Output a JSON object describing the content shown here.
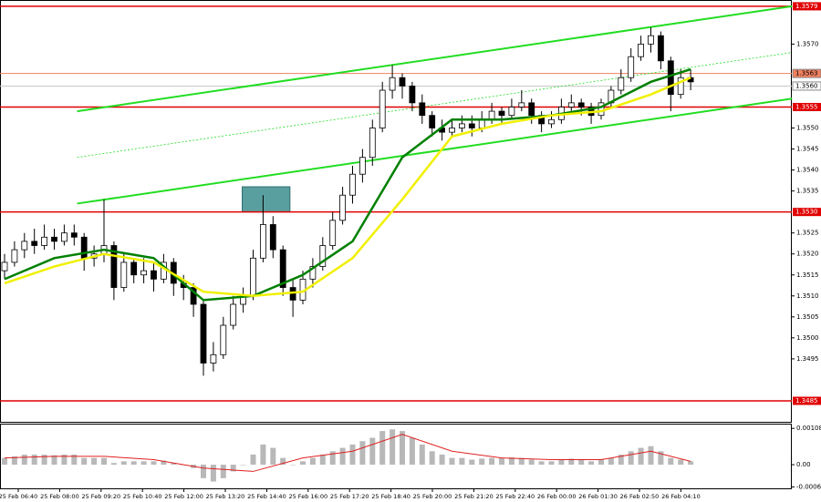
{
  "chart_data": {
    "type": "candlestick",
    "ylim": [
      1.348,
      1.35805
    ],
    "yticks": [
      {
        "value": 1.357,
        "label": "1.3570"
      },
      {
        "value": 1.355,
        "label": "1.3550"
      },
      {
        "value": 1.3545,
        "label": "1.3545"
      },
      {
        "value": 1.354,
        "label": "1.3540"
      },
      {
        "value": 1.3535,
        "label": "1.3535"
      },
      {
        "value": 1.3525,
        "label": "1.3525"
      },
      {
        "value": 1.352,
        "label": "1.3520"
      },
      {
        "value": 1.3515,
        "label": "1.3515"
      },
      {
        "value": 1.351,
        "label": "1.3510"
      },
      {
        "value": 1.3505,
        "label": "1.3505"
      },
      {
        "value": 1.35,
        "label": "1.3500"
      },
      {
        "value": 1.3495,
        "label": "1.3495"
      }
    ],
    "levels": [
      {
        "value": 1.3579,
        "label": "1.3579",
        "color": "#e00000"
      },
      {
        "value": 1.3563,
        "label": "1.3563",
        "color": "#f08060"
      },
      {
        "value": 1.356,
        "label": "1.3560",
        "color": "#c8c8c8"
      },
      {
        "value": 1.3555,
        "label": "1.3555",
        "color": "#e00000"
      },
      {
        "value": 1.353,
        "label": "1.3530",
        "color": "#e00000"
      },
      {
        "value": 1.3485,
        "label": "1.3485",
        "color": "#e00000"
      }
    ],
    "x_labels": [
      "25 Feb 06:40",
      "25 Feb 08:00",
      "25 Feb 09:20",
      "25 Feb 10:40",
      "25 Feb 12:00",
      "25 Feb 13:20",
      "25 Feb 14:40",
      "25 Feb 16:00",
      "25 Feb 17:20",
      "25 Feb 18:40",
      "25 Feb 20:00",
      "25 Feb 21:20",
      "25 Feb 22:40",
      "26 Feb 00:00",
      "26 Feb 01:30",
      "26 Feb 02:50",
      "26 Feb 04:10"
    ],
    "ohlc": [
      [
        1.3516,
        1.352,
        1.3514,
        1.3518
      ],
      [
        1.3518,
        1.3523,
        1.3517,
        1.3521
      ],
      [
        1.3521,
        1.3525,
        1.3519,
        1.3523
      ],
      [
        1.3523,
        1.3526,
        1.352,
        1.3522
      ],
      [
        1.3522,
        1.3527,
        1.3521,
        1.3524
      ],
      [
        1.3524,
        1.3526,
        1.3521,
        1.3523
      ],
      [
        1.3523,
        1.3527,
        1.3522,
        1.3525
      ],
      [
        1.3525,
        1.3527,
        1.3522,
        1.3524
      ],
      [
        1.3524,
        1.3525,
        1.3516,
        1.3519
      ],
      [
        1.3519,
        1.3522,
        1.3517,
        1.352
      ],
      [
        1.352,
        1.3533,
        1.3518,
        1.3522
      ],
      [
        1.3522,
        1.3523,
        1.3509,
        1.3512
      ],
      [
        1.3512,
        1.352,
        1.3511,
        1.3518
      ],
      [
        1.3518,
        1.3519,
        1.3513,
        1.3515
      ],
      [
        1.3515,
        1.3519,
        1.3513,
        1.3516
      ],
      [
        1.3516,
        1.3518,
        1.3511,
        1.3514
      ],
      [
        1.3514,
        1.352,
        1.3513,
        1.3518
      ],
      [
        1.3518,
        1.3519,
        1.351,
        1.3513
      ],
      [
        1.3513,
        1.3515,
        1.3509,
        1.3512
      ],
      [
        1.3512,
        1.3513,
        1.3505,
        1.3508
      ],
      [
        1.3508,
        1.3509,
        1.3491,
        1.3494
      ],
      [
        1.3494,
        1.3499,
        1.3492,
        1.3496
      ],
      [
        1.3496,
        1.3505,
        1.3495,
        1.3503
      ],
      [
        1.3503,
        1.351,
        1.3502,
        1.3508
      ],
      [
        1.3508,
        1.3512,
        1.3506,
        1.351
      ],
      [
        1.351,
        1.3521,
        1.3509,
        1.3519
      ],
      [
        1.3519,
        1.3534,
        1.3518,
        1.3527
      ],
      [
        1.3527,
        1.3529,
        1.3519,
        1.3521
      ],
      [
        1.3521,
        1.3522,
        1.351,
        1.3512
      ],
      [
        1.3512,
        1.3514,
        1.3505,
        1.3509
      ],
      [
        1.3509,
        1.3516,
        1.3508,
        1.3514
      ],
      [
        1.3514,
        1.3519,
        1.3512,
        1.3517
      ],
      [
        1.3517,
        1.3524,
        1.3516,
        1.3522
      ],
      [
        1.3522,
        1.353,
        1.3521,
        1.3528
      ],
      [
        1.3528,
        1.3536,
        1.3527,
        1.3534
      ],
      [
        1.3534,
        1.3541,
        1.3532,
        1.3539
      ],
      [
        1.3539,
        1.3545,
        1.3537,
        1.3543
      ],
      [
        1.3543,
        1.3552,
        1.3541,
        1.355
      ],
      [
        1.355,
        1.3561,
        1.3549,
        1.3559
      ],
      [
        1.3559,
        1.3565,
        1.3557,
        1.3562
      ],
      [
        1.3562,
        1.3563,
        1.3557,
        1.356
      ],
      [
        1.356,
        1.3561,
        1.3554,
        1.3556
      ],
      [
        1.3556,
        1.3558,
        1.3551,
        1.3553
      ],
      [
        1.3553,
        1.3554,
        1.3548,
        1.355
      ],
      [
        1.355,
        1.3552,
        1.3547,
        1.3549
      ],
      [
        1.3549,
        1.3552,
        1.3548,
        1.355
      ],
      [
        1.355,
        1.3553,
        1.3549,
        1.3551
      ],
      [
        1.3551,
        1.3553,
        1.3548,
        1.355
      ],
      [
        1.355,
        1.3554,
        1.3549,
        1.3552
      ],
      [
        1.3552,
        1.3556,
        1.3551,
        1.3554
      ],
      [
        1.3554,
        1.3555,
        1.3551,
        1.3553
      ],
      [
        1.3553,
        1.3557,
        1.3552,
        1.3555
      ],
      [
        1.3555,
        1.3559,
        1.3554,
        1.3556
      ],
      [
        1.3556,
        1.3557,
        1.3551,
        1.3553
      ],
      [
        1.3553,
        1.3554,
        1.3549,
        1.3551
      ],
      [
        1.3551,
        1.3554,
        1.355,
        1.3552
      ],
      [
        1.3552,
        1.3557,
        1.3551,
        1.3555
      ],
      [
        1.3555,
        1.3558,
        1.3554,
        1.3556
      ],
      [
        1.3556,
        1.3557,
        1.3553,
        1.3555
      ],
      [
        1.3555,
        1.3556,
        1.3551,
        1.3553
      ],
      [
        1.3553,
        1.3557,
        1.3552,
        1.3556
      ],
      [
        1.3556,
        1.356,
        1.3555,
        1.3559
      ],
      [
        1.3559,
        1.3564,
        1.3558,
        1.3562
      ],
      [
        1.3562,
        1.3569,
        1.3561,
        1.3567
      ],
      [
        1.3567,
        1.3572,
        1.3566,
        1.357
      ],
      [
        1.357,
        1.3574,
        1.3568,
        1.3572
      ],
      [
        1.3572,
        1.3573,
        1.3564,
        1.3566
      ],
      [
        1.3566,
        1.3567,
        1.3554,
        1.3558
      ],
      [
        1.3558,
        1.3564,
        1.3557,
        1.3562
      ],
      [
        1.3562,
        1.3564,
        1.3559,
        1.3561
      ]
    ],
    "ma": [
      {
        "color": "#008000",
        "x": [
          0,
          5,
          10,
          15,
          20,
          25,
          30,
          35,
          40,
          45,
          50,
          55,
          60,
          65,
          69
        ],
        "values": [
          1.3514,
          1.3519,
          1.3521,
          1.3519,
          1.3509,
          1.351,
          1.3515,
          1.3523,
          1.3543,
          1.3552,
          1.3552,
          1.3553,
          1.3555,
          1.3561,
          1.3564
        ]
      },
      {
        "color": "#f0f000",
        "x": [
          0,
          5,
          10,
          15,
          20,
          25,
          30,
          35,
          40,
          45,
          50,
          55,
          60,
          65,
          69
        ],
        "values": [
          1.3513,
          1.3517,
          1.352,
          1.3518,
          1.3511,
          1.351,
          1.3511,
          1.3519,
          1.3533,
          1.3548,
          1.3551,
          1.3553,
          1.3554,
          1.3558,
          1.3562
        ]
      }
    ],
    "channels": [
      {
        "color": "#22dd22",
        "dashed": false,
        "x": [
          7.3,
          79.2
        ],
        "values": [
          1.3554,
          1.3579
        ]
      },
      {
        "color": "#22dd22",
        "dashed": true,
        "x": [
          7.3,
          79.2
        ],
        "values": [
          1.3543,
          1.3568
        ]
      },
      {
        "color": "#22dd22",
        "dashed": false,
        "x": [
          7.3,
          79.2
        ],
        "values": [
          1.3532,
          1.3557
        ]
      }
    ],
    "zone": {
      "color": "#5a9f9f",
      "x": [
        23.9,
        28.7
      ],
      "y": [
        1.353,
        1.3536
      ]
    },
    "macd": {
      "ylim": [
        -0.00073,
        0.00122
      ],
      "yticks": [
        {
          "value": 0.00108,
          "label": "0.00108"
        },
        {
          "value": 0,
          "label": "0.00"
        },
        {
          "value": -0.00066,
          "label": "-0.00066"
        }
      ],
      "color": "#b8b8b8",
      "histogram": [
        0.0002,
        0.00025,
        0.0003,
        0.0003,
        0.0003,
        0.00028,
        0.0003,
        0.0003,
        0.0002,
        0.0002,
        0.0002,
        5e-05,
        0.0001,
        0.0001,
        0.0001,
        0.0001,
        0.00012,
        5e-05,
        0,
        -0.0001,
        -0.0004,
        -0.0005,
        -0.0004,
        -0.0002,
        0,
        0.0003,
        0.0006,
        0.0005,
        0.0002,
        0,
        0.0001,
        0.0002,
        0.0003,
        0.0004,
        0.0005,
        0.0006,
        0.0007,
        0.0008,
        0.001,
        0.00105,
        0.001,
        0.0008,
        0.0006,
        0.0004,
        0.0003,
        0.0002,
        0.0002,
        0.00015,
        0.00018,
        0.0002,
        0.0002,
        0.00022,
        0.0002,
        0.00015,
        0.0001,
        0.0001,
        0.00015,
        0.00018,
        0.00015,
        0.0001,
        0.00015,
        0.0002,
        0.0003,
        0.0004,
        0.0005,
        0.00055,
        0.0004,
        0.0002,
        0.00015,
        0.0001
      ],
      "signal": {
        "color": "#e02020",
        "x": [
          0,
          5,
          10,
          15,
          20,
          25,
          30,
          35,
          40,
          45,
          50,
          55,
          60,
          65,
          69
        ],
        "values": [
          0.0002,
          0.00025,
          0.00025,
          0.00015,
          -0.0001,
          -0.0002,
          0.0002,
          0.0004,
          0.0009,
          0.0004,
          0.0002,
          0.00015,
          0.00015,
          0.0004,
          0.0001
        ]
      }
    }
  }
}
